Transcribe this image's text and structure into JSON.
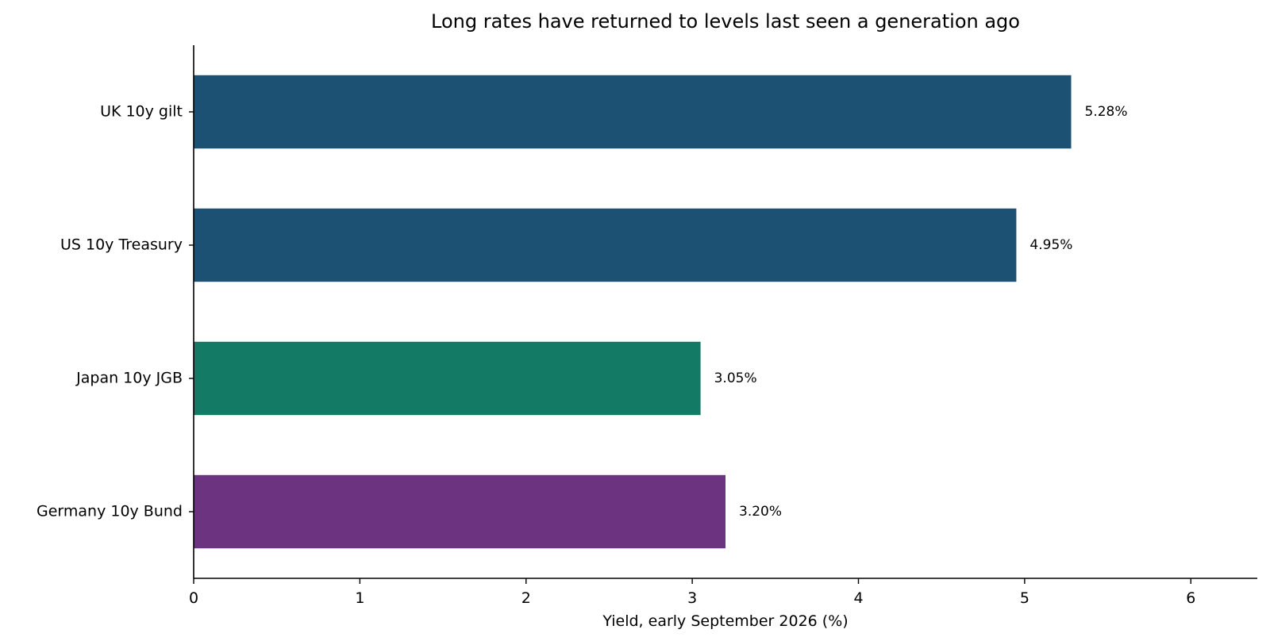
{
  "chart_data": {
    "type": "bar",
    "orientation": "horizontal",
    "title": "Long rates have returned to levels last seen a generation ago",
    "xlabel": "Yield, early September 2026 (%)",
    "ylabel": "",
    "xlim": [
      0,
      6.4
    ],
    "xticks": [
      0,
      1,
      2,
      3,
      4,
      5,
      6
    ],
    "grid": false,
    "categories": [
      "UK 10y gilt",
      "US 10y Treasury",
      "Japan 10y JGB",
      "Germany 10y Bund"
    ],
    "values": [
      5.28,
      4.95,
      3.05,
      3.2
    ],
    "value_labels": [
      "5.28%",
      "4.95%",
      "3.05%",
      "3.20%"
    ],
    "colors": [
      "#1c5174",
      "#1c5174",
      "#127a65",
      "#6c3380"
    ]
  }
}
